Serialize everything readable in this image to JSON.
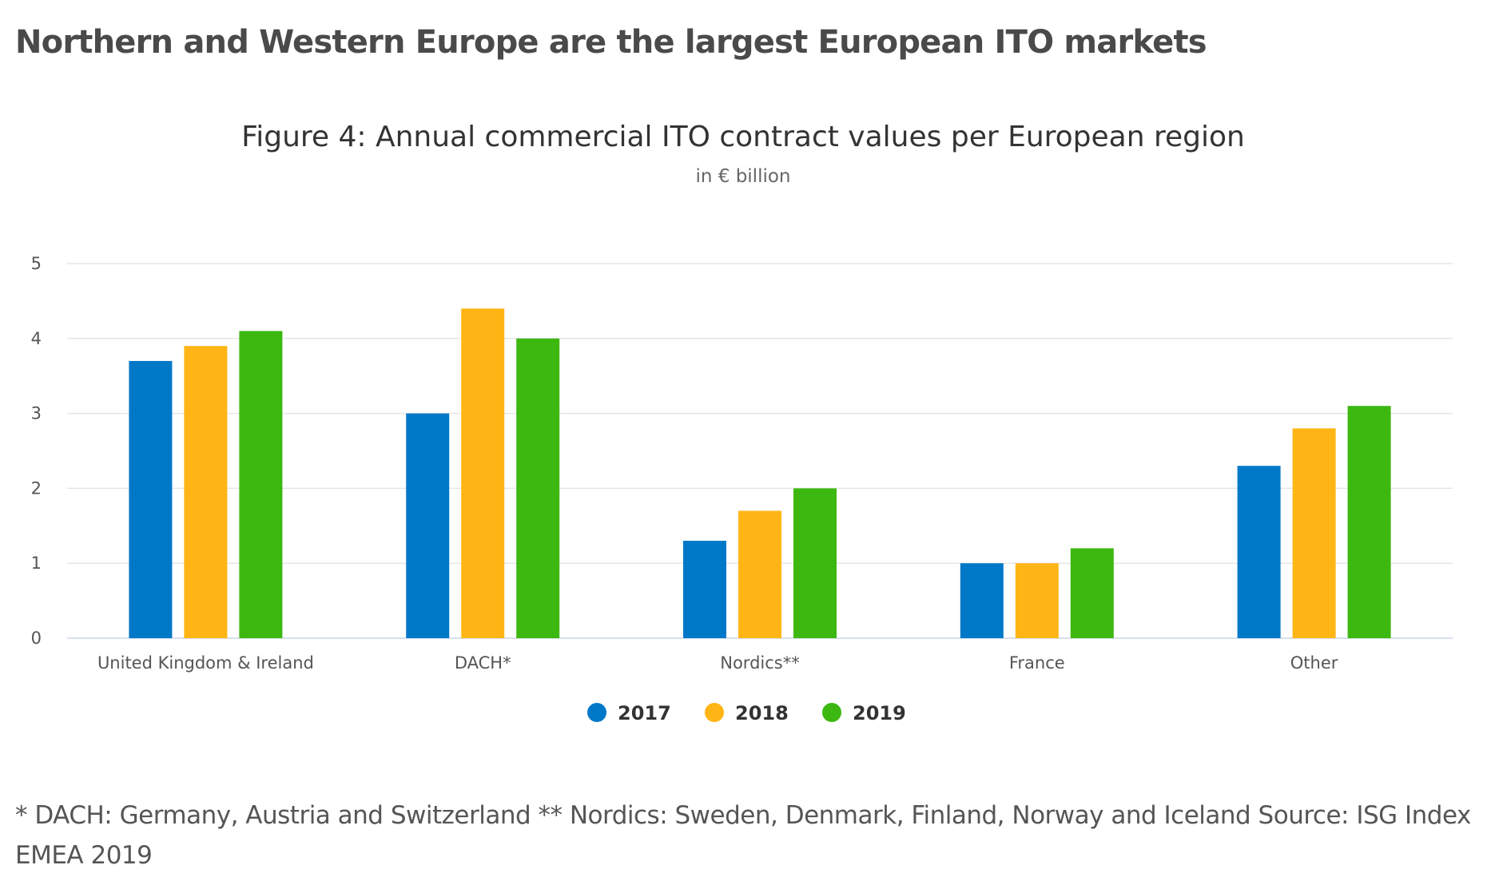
{
  "header": {
    "headline": "Northern and Western Europe are the largest European ITO markets"
  },
  "footnote": "* DACH: Germany, Austria and Switzerland ** Nordics: Sweden, Denmark, Finland, Norway and Iceland Source: ISG Index EMEA 2019",
  "chart_data": {
    "type": "bar",
    "title": "Figure 4: Annual commercial ITO contract values per European region",
    "subtitle": "in € billion",
    "xlabel": "",
    "ylabel": "",
    "ylim": [
      0,
      5
    ],
    "yticks": [
      "0",
      "1",
      "2",
      "3",
      "4",
      "5"
    ],
    "grid": true,
    "legend_position": "bottom-center",
    "categories": [
      "United Kingdom & Ireland",
      "DACH*",
      "Nordics**",
      "France",
      "Other"
    ],
    "series": [
      {
        "name": "2017",
        "color": "#0078c8",
        "values": [
          3.7,
          3.0,
          1.3,
          1.0,
          2.3
        ]
      },
      {
        "name": "2018",
        "color": "#ffb515",
        "values": [
          3.9,
          4.4,
          1.7,
          1.0,
          2.8
        ]
      },
      {
        "name": "2019",
        "color": "#3cb811",
        "values": [
          4.1,
          4.0,
          2.0,
          1.2,
          3.1
        ]
      }
    ]
  }
}
